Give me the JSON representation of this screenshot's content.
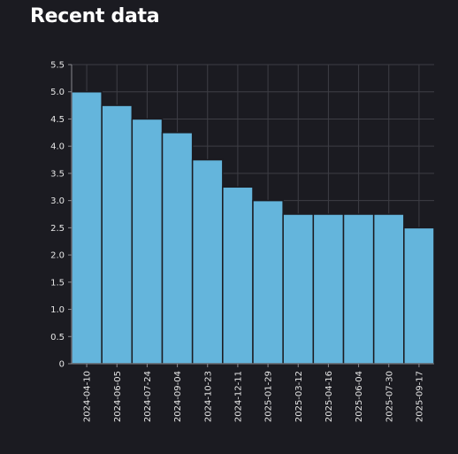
{
  "page": {
    "title": "Recent data"
  },
  "chart_data": {
    "type": "bar",
    "categories": [
      "2024-04-10",
      "2024-06-05",
      "2024-07-24",
      "2024-09-04",
      "2024-10-23",
      "2024-12-11",
      "2025-01-29",
      "2025-03-12",
      "2025-04-16",
      "2025-06-04",
      "2025-07-30",
      "2025-09-17"
    ],
    "values": [
      5.0,
      4.75,
      4.5,
      4.25,
      3.75,
      3.25,
      3.0,
      2.75,
      2.75,
      2.75,
      2.75,
      2.5
    ],
    "y_ticks": [
      0,
      0.5,
      1.0,
      1.5,
      2.0,
      2.5,
      3.0,
      3.5,
      4.0,
      4.5,
      5.0,
      5.5
    ],
    "ylim": [
      0,
      5.5
    ],
    "grid": true,
    "colors": {
      "bar": "#64b5dc",
      "bar_edge": "#1b1b21",
      "grid": "#3e3e45",
      "axis": "#8a8a90",
      "text": "#e6e6e6",
      "background": "#1b1b21"
    }
  }
}
